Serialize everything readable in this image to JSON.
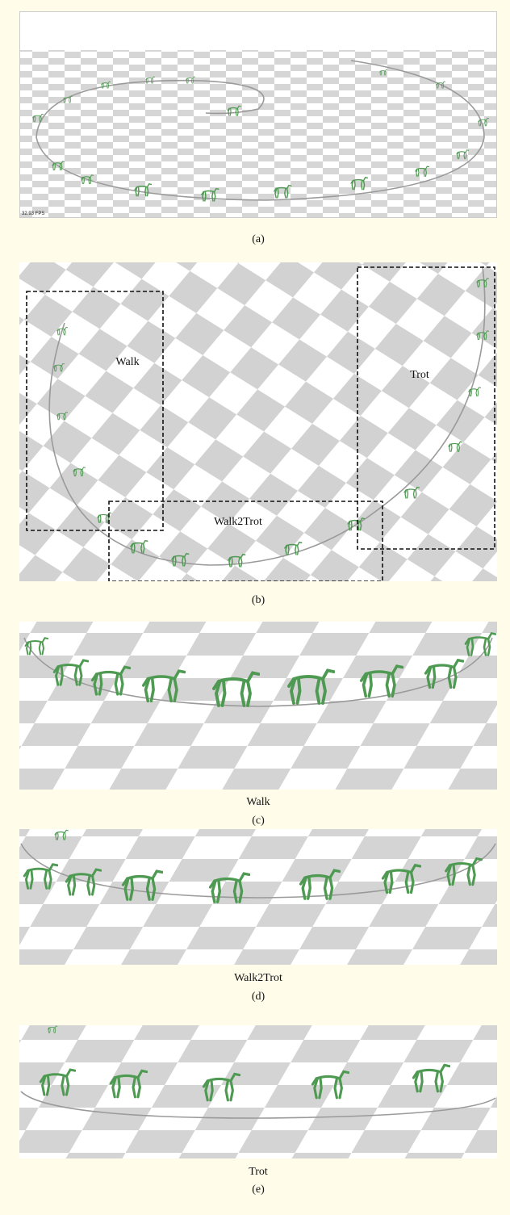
{
  "panels": [
    {
      "fps_label": "32.93 FPS",
      "caption": "(a)"
    },
    {
      "regions": [
        "Walk",
        "Trot",
        "Walk2Trot"
      ],
      "caption": "(b)"
    },
    {
      "title": "Walk",
      "caption": "(c)"
    },
    {
      "title": "Walk2Trot",
      "caption": "(d)"
    },
    {
      "title": "Trot",
      "caption": "(e)"
    }
  ]
}
